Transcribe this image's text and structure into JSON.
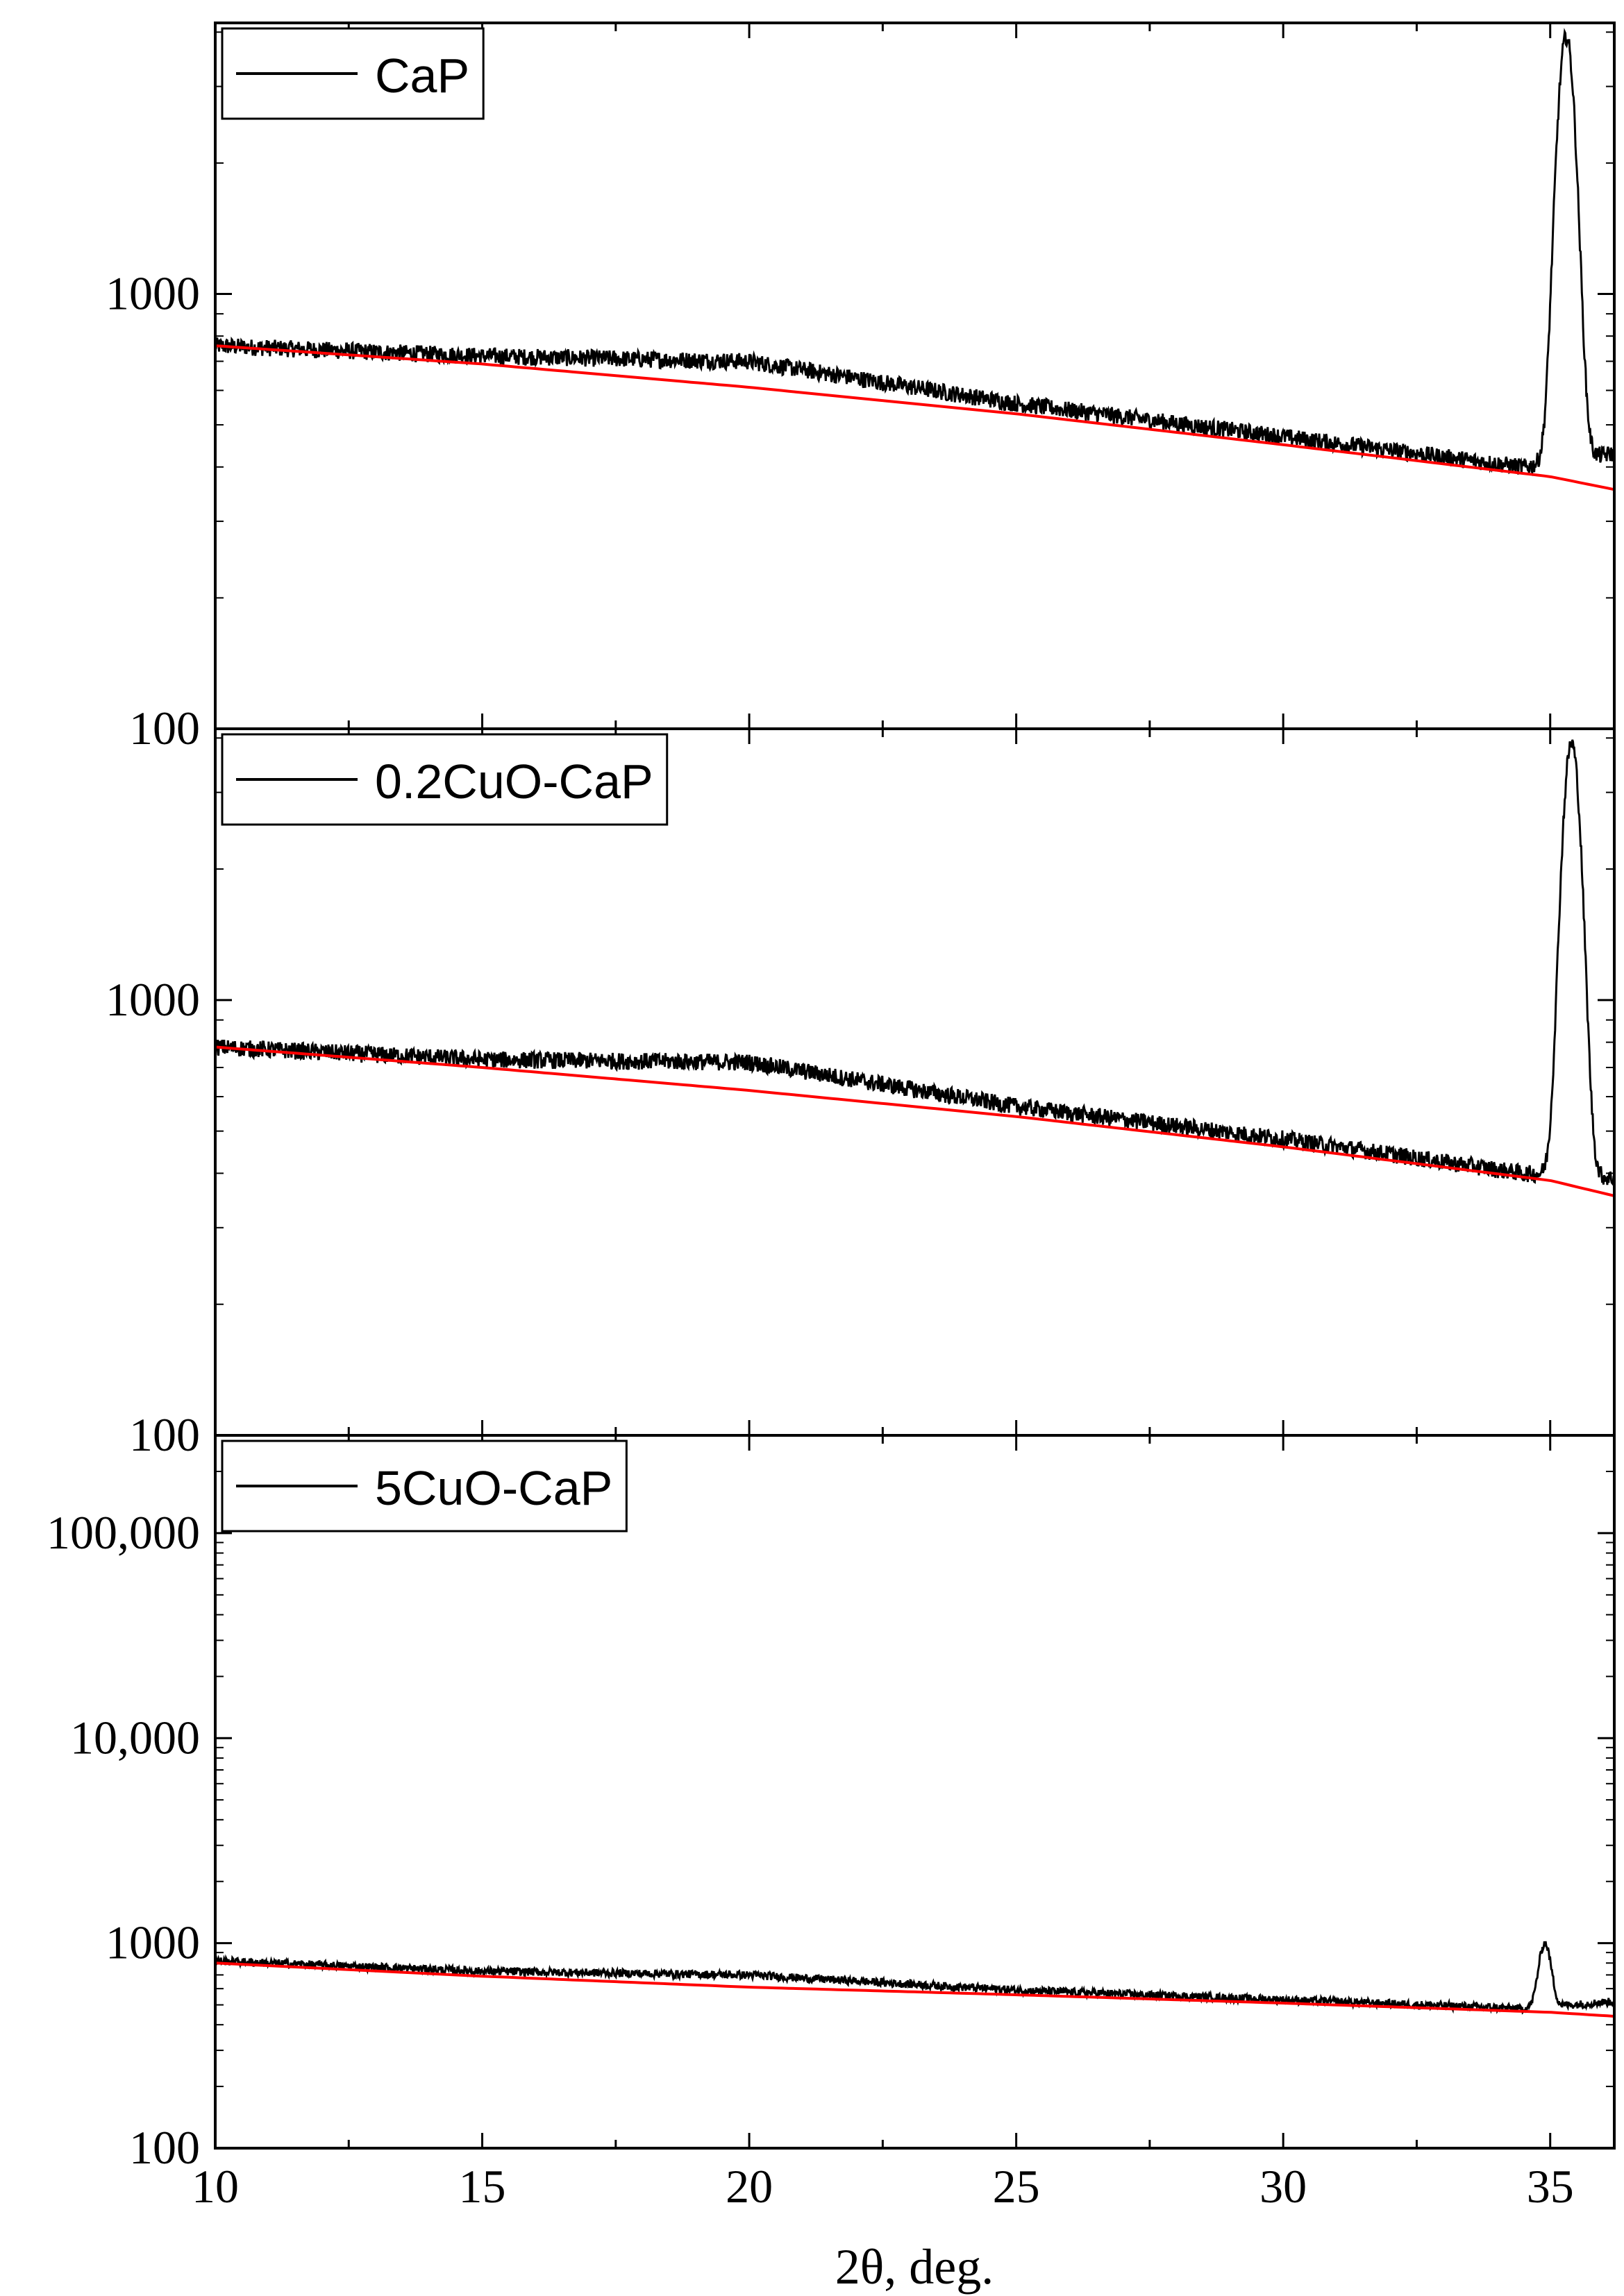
{
  "chart_data": {
    "type": "line",
    "xlabel": "2θ, deg.",
    "x_ticks": [
      "10",
      "15",
      "20",
      "25",
      "30",
      "35"
    ],
    "xlim": [
      10,
      36.2
    ],
    "y_scale": "log",
    "colors": {
      "measured": "#000000",
      "background_fit": "#ff0000"
    },
    "panels": [
      {
        "legend": "CaP",
        "legend_position": "top-left",
        "ylim": [
          100,
          4200
        ],
        "y_ticks": [
          "1000",
          "100"
        ],
        "y_tick_values": [
          1000,
          100
        ],
        "background_fit": {
          "x": [
            10,
            15,
            20,
            25,
            30,
            35,
            36.2
          ],
          "y": [
            760,
            690,
            610,
            530,
            450,
            380,
            355
          ]
        },
        "measured_peaks": [
          {
            "x": 20.8,
            "y": 700,
            "w": 2.8
          },
          {
            "x": 29.2,
            "y": 510,
            "w": 1.8
          },
          {
            "x": 35.3,
            "y": 3900,
            "w": 0.22
          }
        ],
        "measured_anchors": {
          "x": [
            10,
            15,
            20,
            25,
            30,
            34.5,
            36.2
          ],
          "y": [
            760,
            720,
            700,
            560,
            470,
            400,
            430
          ]
        }
      },
      {
        "legend": "0.2CuO-CaP",
        "legend_position": "top-left",
        "ylim": [
          100,
          4200
        ],
        "y_ticks": [
          "1000",
          "100"
        ],
        "y_tick_values": [
          1000,
          100
        ],
        "background_fit": {
          "x": [
            10,
            15,
            20,
            25,
            30,
            35,
            36.2
          ],
          "y": [
            780,
            700,
            620,
            540,
            460,
            385,
            355
          ]
        },
        "measured_peaks": [
          {
            "x": 21.0,
            "y": 720,
            "w": 2.8
          },
          {
            "x": 29.2,
            "y": 520,
            "w": 1.8
          },
          {
            "x": 35.4,
            "y": 3900,
            "w": 0.22
          }
        ],
        "measured_anchors": {
          "x": [
            10,
            15,
            20,
            25,
            30,
            34.5,
            36.2
          ],
          "y": [
            780,
            730,
            720,
            570,
            480,
            400,
            390
          ]
        }
      },
      {
        "legend": "5CuO-CaP",
        "legend_position": "top-left",
        "ylim": [
          100,
          300000
        ],
        "y_ticks": [
          "100,000",
          "10,000",
          "1000",
          "100"
        ],
        "y_tick_values": [
          100000,
          10000,
          1000,
          100
        ],
        "background_fit": {
          "x": [
            10,
            15,
            20,
            25,
            30,
            35,
            36.2
          ],
          "y": [
            800,
            690,
            610,
            560,
            510,
            460,
            440
          ]
        },
        "measured_peaks": [
          {
            "x": 19.5,
            "y": 760,
            "w": 1.5
          },
          {
            "x": 34.9,
            "y": 1000,
            "w": 0.15
          }
        ],
        "measured_anchors": {
          "x": [
            10,
            15,
            20,
            25,
            30,
            34.5,
            36.2
          ],
          "y": [
            820,
            730,
            700,
            590,
            530,
            480,
            520
          ]
        }
      }
    ]
  }
}
